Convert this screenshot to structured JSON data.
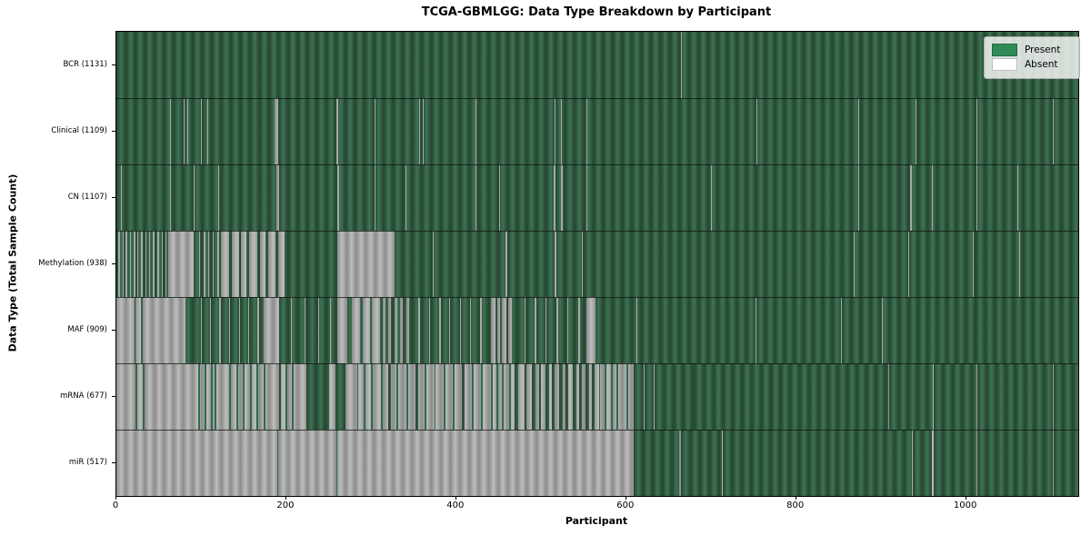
{
  "chart_data": {
    "type": "heatmap",
    "title": "TCGA-GBMLGG: Data Type Breakdown by Participant",
    "xlabel": "Participant",
    "ylabel": "Data Type (Total Sample Count)",
    "xlim": [
      0,
      1132
    ],
    "x_ticks": [
      0,
      200,
      400,
      600,
      800,
      1000
    ],
    "grid": false,
    "legend_position": "upper right",
    "colors": {
      "present": "#2e8b57",
      "absent": "#ffffff"
    },
    "legend": [
      {
        "key": "present",
        "label": "Present"
      },
      {
        "key": "absent",
        "label": "Absent"
      }
    ],
    "note_encoding": "rows list absence/presence runs as [start_participant, length]; base is the row's dominant state",
    "rows": [
      {
        "key": "bcr",
        "label": "BCR (1131)",
        "present_count": 1131,
        "base": "present",
        "runs_state": "absent",
        "runs": [
          [
            664,
            1
          ]
        ]
      },
      {
        "key": "clinical",
        "label": "Clinical (1109)",
        "present_count": 1109,
        "base": "present",
        "runs_state": "absent",
        "runs": [
          [
            63,
            1
          ],
          [
            79,
            1
          ],
          [
            83,
            1
          ],
          [
            99,
            1
          ],
          [
            107,
            1
          ],
          [
            186,
            4
          ],
          [
            259,
            2
          ],
          [
            304,
            1
          ],
          [
            356,
            1
          ],
          [
            361,
            1
          ],
          [
            423,
            1
          ],
          [
            516,
            1
          ],
          [
            523,
            1
          ],
          [
            553,
            1
          ],
          [
            753,
            1
          ],
          [
            873,
            1
          ],
          [
            940,
            1
          ],
          [
            1012,
            1
          ],
          [
            1102,
            1
          ]
        ]
      },
      {
        "key": "cn",
        "label": "CN (1107)",
        "present_count": 1107,
        "base": "present",
        "runs_state": "absent",
        "runs": [
          [
            5,
            1
          ],
          [
            63,
            1
          ],
          [
            91,
            1
          ],
          [
            120,
            1
          ],
          [
            188,
            3
          ],
          [
            260,
            2
          ],
          [
            304,
            1
          ],
          [
            340,
            1
          ],
          [
            423,
            1
          ],
          [
            450,
            1
          ],
          [
            515,
            2
          ],
          [
            523,
            2
          ],
          [
            553,
            1
          ],
          [
            700,
            1
          ],
          [
            873,
            1
          ],
          [
            934,
            2
          ],
          [
            960,
            1
          ],
          [
            1012,
            1
          ],
          [
            1060,
            1
          ]
        ]
      },
      {
        "key": "methylation",
        "label": "Methylation (938)",
        "present_count": 938,
        "base": "present",
        "runs_state": "absent",
        "runs": [
          [
            2,
            2
          ],
          [
            7,
            1
          ],
          [
            11,
            2
          ],
          [
            16,
            1
          ],
          [
            20,
            2
          ],
          [
            25,
            1
          ],
          [
            29,
            2
          ],
          [
            34,
            1
          ],
          [
            38,
            2
          ],
          [
            43,
            2
          ],
          [
            48,
            2
          ],
          [
            53,
            2
          ],
          [
            58,
            1
          ],
          [
            61,
            30
          ],
          [
            97,
            1
          ],
          [
            103,
            2
          ],
          [
            108,
            1
          ],
          [
            113,
            2
          ],
          [
            119,
            2
          ],
          [
            123,
            10
          ],
          [
            136,
            8
          ],
          [
            147,
            6
          ],
          [
            156,
            10
          ],
          [
            169,
            7
          ],
          [
            179,
            8
          ],
          [
            190,
            8
          ],
          [
            260,
            67
          ],
          [
            372,
            1
          ],
          [
            458,
            2
          ],
          [
            516,
            2
          ],
          [
            548,
            1
          ],
          [
            868,
            1
          ],
          [
            932,
            1
          ],
          [
            1008,
            1
          ],
          [
            1062,
            2
          ]
        ]
      },
      {
        "key": "maf",
        "label": "MAF (909)",
        "present_count": 909,
        "base": "present",
        "runs_state": "absent",
        "runs": [
          [
            0,
            21
          ],
          [
            23,
            6
          ],
          [
            31,
            50
          ],
          [
            99,
            2
          ],
          [
            110,
            1
          ],
          [
            121,
            2
          ],
          [
            133,
            1
          ],
          [
            144,
            2
          ],
          [
            155,
            1
          ],
          [
            166,
            2
          ],
          [
            173,
            18
          ],
          [
            205,
            2
          ],
          [
            221,
            1
          ],
          [
            237,
            2
          ],
          [
            251,
            1
          ],
          [
            260,
            12
          ],
          [
            277,
            10
          ],
          [
            290,
            9
          ],
          [
            301,
            9
          ],
          [
            313,
            4
          ],
          [
            320,
            3
          ],
          [
            327,
            4
          ],
          [
            334,
            3
          ],
          [
            341,
            4
          ],
          [
            355,
            2
          ],
          [
            368,
            1
          ],
          [
            380,
            2
          ],
          [
            392,
            1
          ],
          [
            404,
            2
          ],
          [
            416,
            1
          ],
          [
            428,
            2
          ],
          [
            441,
            5
          ],
          [
            448,
            4
          ],
          [
            454,
            5
          ],
          [
            461,
            4
          ],
          [
            480,
            1
          ],
          [
            492,
            2
          ],
          [
            505,
            1
          ],
          [
            518,
            2
          ],
          [
            531,
            1
          ],
          [
            544,
            2
          ],
          [
            553,
            11
          ],
          [
            612,
            1
          ],
          [
            752,
            1
          ],
          [
            853,
            1
          ],
          [
            901,
            1
          ]
        ]
      },
      {
        "key": "mrna",
        "label": "mRNA (677)",
        "present_count": 677,
        "base": "absent",
        "runs_state": "present",
        "runs": [
          [
            23,
            2
          ],
          [
            31,
            2
          ],
          [
            96,
            2
          ],
          [
            104,
            2
          ],
          [
            111,
            2
          ],
          [
            116,
            2
          ],
          [
            133,
            2
          ],
          [
            141,
            2
          ],
          [
            149,
            2
          ],
          [
            157,
            2
          ],
          [
            165,
            2
          ],
          [
            173,
            2
          ],
          [
            191,
            3
          ],
          [
            199,
            2
          ],
          [
            207,
            2
          ],
          [
            224,
            26
          ],
          [
            258,
            12
          ],
          [
            283,
            2
          ],
          [
            291,
            2
          ],
          [
            300,
            2
          ],
          [
            311,
            2
          ],
          [
            320,
            3
          ],
          [
            330,
            2
          ],
          [
            341,
            2
          ],
          [
            352,
            3
          ],
          [
            363,
            2
          ],
          [
            374,
            2
          ],
          [
            385,
            2
          ],
          [
            396,
            2
          ],
          [
            407,
            3
          ],
          [
            418,
            2
          ],
          [
            429,
            2
          ],
          [
            441,
            2
          ],
          [
            447,
            2
          ],
          [
            454,
            2
          ],
          [
            462,
            2
          ],
          [
            469,
            4
          ],
          [
            480,
            3
          ],
          [
            489,
            4
          ],
          [
            497,
            3
          ],
          [
            505,
            4
          ],
          [
            513,
            3
          ],
          [
            521,
            4
          ],
          [
            529,
            3
          ],
          [
            537,
            4
          ],
          [
            545,
            3
          ],
          [
            552,
            4
          ],
          [
            560,
            3
          ],
          [
            568,
            1
          ],
          [
            575,
            2
          ],
          [
            582,
            2
          ],
          [
            589,
            2
          ],
          [
            600,
            2
          ],
          [
            609,
            12
          ],
          [
            622,
            10
          ],
          [
            633,
            47
          ],
          [
            681,
            227
          ],
          [
            909,
            52
          ],
          [
            962,
            50
          ],
          [
            1013,
            89
          ],
          [
            1103,
            29
          ]
        ]
      },
      {
        "key": "mir",
        "label": "miR (517)",
        "present_count": 517,
        "base": "absent",
        "runs_state": "present",
        "runs": [
          [
            189,
            1
          ],
          [
            259,
            1
          ],
          [
            609,
            53
          ],
          [
            664,
            49
          ],
          [
            714,
            222
          ],
          [
            937,
            23
          ],
          [
            962,
            50
          ],
          [
            1013,
            89
          ],
          [
            1103,
            29
          ]
        ]
      }
    ]
  }
}
